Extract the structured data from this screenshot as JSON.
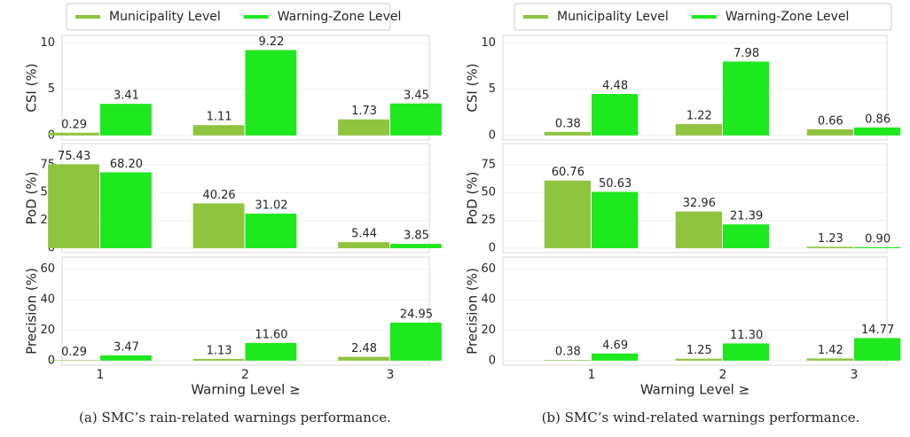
{
  "chart_data": [
    {
      "type": "bar",
      "caption": "(a) SMC’s rain-related warnings performance.",
      "xlabel": "Warning Level ≥",
      "categories": [
        "1",
        "2",
        "3"
      ],
      "grid": true,
      "legend": "top",
      "series_names": [
        {
          "name": "Municipality Level",
          "color": "#8fc43f"
        },
        {
          "name": "Warning-Zone Level",
          "color": "#1ee81e"
        }
      ],
      "subplots": [
        {
          "ylabel": "CSI (%)",
          "ylim": [
            -0.5,
            10.8
          ],
          "yticks": [
            0,
            5,
            10
          ],
          "series": [
            {
              "values": [
                0.29,
                1.11,
                1.73
              ],
              "value_labels": [
                "0.29",
                "1.11",
                "1.73"
              ]
            },
            {
              "values": [
                3.41,
                9.22,
                3.45
              ],
              "value_labels": [
                "3.41",
                "9.22",
                "3.45"
              ]
            }
          ]
        },
        {
          "ylabel": "PoD (%)",
          "ylim": [
            -4,
            94
          ],
          "yticks": [
            0,
            25,
            50,
            75
          ],
          "series": [
            {
              "values": [
                75.43,
                40.26,
                5.44
              ],
              "value_labels": [
                "75.43",
                "40.26",
                "5.44"
              ]
            },
            {
              "values": [
                68.2,
                31.02,
                3.85
              ],
              "value_labels": [
                "68.20",
                "31.02",
                "3.85"
              ]
            }
          ]
        },
        {
          "ylabel": "Precision (%)",
          "ylim": [
            -3,
            68
          ],
          "yticks": [
            0,
            20,
            40,
            60
          ],
          "series": [
            {
              "values": [
                0.29,
                1.13,
                2.48
              ],
              "value_labels": [
                "0.29",
                "1.13",
                "2.48"
              ]
            },
            {
              "values": [
                3.47,
                11.6,
                24.95
              ],
              "value_labels": [
                "3.47",
                "11.60",
                "24.95"
              ]
            }
          ]
        }
      ]
    },
    {
      "type": "bar",
      "caption": "(b) SMC’s wind-related warnings performance.",
      "xlabel": "Warning Level ≥",
      "categories": [
        "1",
        "2",
        "3"
      ],
      "grid": true,
      "legend": "top",
      "series_names": [
        {
          "name": "Municipality Level",
          "color": "#8fc43f"
        },
        {
          "name": "Warning-Zone Level",
          "color": "#1ee81e"
        }
      ],
      "subplots": [
        {
          "ylabel": "CSI (%)",
          "ylim": [
            -0.5,
            10.8
          ],
          "yticks": [
            0,
            5,
            10
          ],
          "series": [
            {
              "values": [
                0.38,
                1.22,
                0.66
              ],
              "value_labels": [
                "0.38",
                "1.22",
                "0.66"
              ]
            },
            {
              "values": [
                4.48,
                7.98,
                0.86
              ],
              "value_labels": [
                "4.48",
                "7.98",
                "0.86"
              ]
            }
          ]
        },
        {
          "ylabel": "PoD (%)",
          "ylim": [
            -4,
            94
          ],
          "yticks": [
            0,
            25,
            50,
            75
          ],
          "series": [
            {
              "values": [
                60.76,
                32.96,
                1.23
              ],
              "value_labels": [
                "60.76",
                "32.96",
                "1.23"
              ]
            },
            {
              "values": [
                50.63,
                21.39,
                0.9
              ],
              "value_labels": [
                "50.63",
                "21.39",
                "0.90"
              ]
            }
          ]
        },
        {
          "ylabel": "Precision (%)",
          "ylim": [
            -3,
            68
          ],
          "yticks": [
            0,
            20,
            40,
            60
          ],
          "series": [
            {
              "values": [
                0.38,
                1.25,
                1.42
              ],
              "value_labels": [
                "0.38",
                "1.25",
                "1.42"
              ]
            },
            {
              "values": [
                4.69,
                11.3,
                14.77
              ],
              "value_labels": [
                "4.69",
                "11.30",
                "14.77"
              ]
            }
          ]
        }
      ]
    }
  ]
}
